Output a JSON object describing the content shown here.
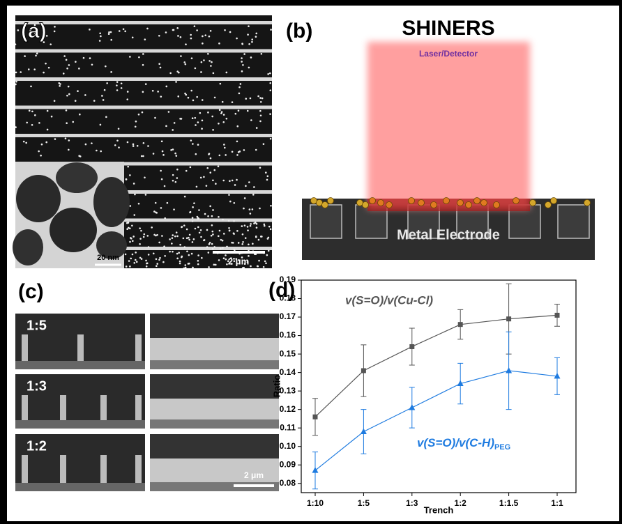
{
  "panels": {
    "a": "(a)",
    "b": "(b)",
    "c": "(c)",
    "d": "(d)"
  },
  "panel_a": {
    "scale_main": "2 μm",
    "scale_inset": "20 nm"
  },
  "panel_b": {
    "title": "SHINERS",
    "beam": "Laser/Detector",
    "electrode": "Metal Electrode"
  },
  "panel_c": {
    "rows": [
      "1:5",
      "1:3",
      "1:2"
    ],
    "scale": "2 μm"
  },
  "chart_data": {
    "type": "line",
    "xlabel": "Trench",
    "ylabel": "Ratio",
    "categories": [
      "1:10",
      "1:5",
      "1:3",
      "1:2",
      "1:1.5",
      "1:1"
    ],
    "ylim": [
      0.075,
      0.19
    ],
    "yticks": [
      0.08,
      0.09,
      {
        "value": 0.1,
        "label": "0.10"
      },
      0.11,
      0.12,
      0.13,
      0.14,
      0.15,
      0.16,
      0.17,
      0.18,
      0.19
    ],
    "series": [
      {
        "name": "v(S=O)/v(Cu-Cl)",
        "color": "#555555",
        "marker": "square",
        "values": [
          0.116,
          0.141,
          0.154,
          0.166,
          0.169,
          0.171
        ],
        "errors": [
          0.01,
          0.014,
          0.01,
          0.008,
          0.019,
          0.006
        ]
      },
      {
        "name": "v(S=O)/v(C-H)",
        "name_sub": "PEG",
        "color": "#1e7be0",
        "marker": "triangle",
        "values": [
          0.087,
          0.108,
          0.121,
          0.134,
          0.141,
          0.138
        ],
        "errors": [
          0.01,
          0.012,
          0.011,
          0.011,
          0.021,
          0.01
        ]
      }
    ]
  }
}
